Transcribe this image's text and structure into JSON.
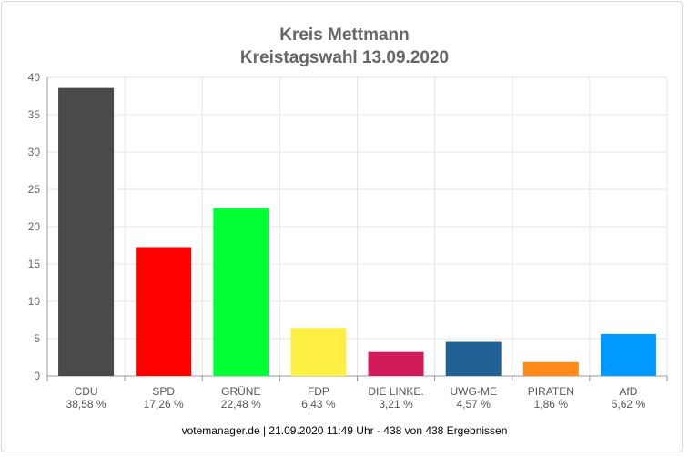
{
  "chart_data": {
    "type": "bar",
    "title": [
      "Kreis Mettmann",
      "Kreistagswahl 13.09.2020"
    ],
    "categories": [
      "CDU",
      "SPD",
      "GRÜNE",
      "FDP",
      "DIE LINKE.",
      "UWG-ME",
      "PIRATEN",
      "AfD"
    ],
    "values": [
      38.58,
      17.26,
      22.48,
      6.43,
      3.21,
      4.57,
      1.86,
      5.62
    ],
    "value_labels": [
      "38,58 %",
      "17,26 %",
      "22,48 %",
      "6,43 %",
      "3,21 %",
      "4,57 %",
      "1,86 %",
      "5,62 %"
    ],
    "colors": [
      "#4a4a4a",
      "#ff0000",
      "#00ff33",
      "#ffee44",
      "#d11a5a",
      "#216196",
      "#ff8a1a",
      "#0099ff"
    ],
    "ylim": [
      0,
      40
    ],
    "yticks": [
      "0",
      "5",
      "10",
      "15",
      "20",
      "25",
      "30",
      "35",
      "40"
    ],
    "grid": true
  },
  "footer": "votemanager.de | 21.09.2020 11:49 Uhr - 438 von 438 Ergebnissen"
}
